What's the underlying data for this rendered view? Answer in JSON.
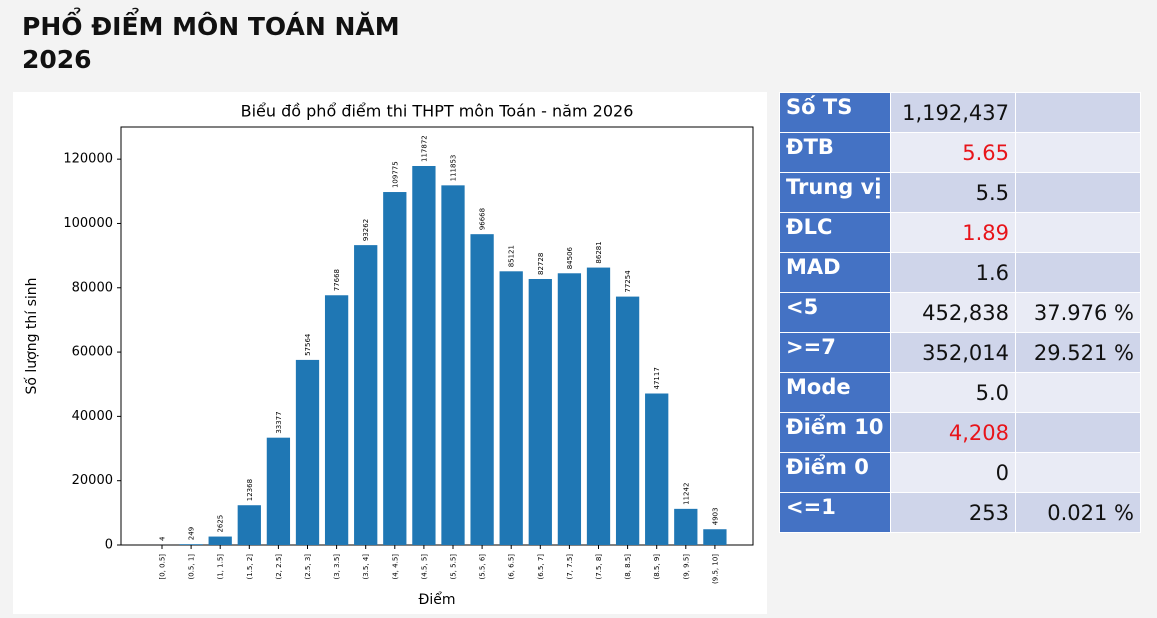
{
  "header": {
    "title": "PHỔ ĐIỂM MÔN TOÁN NĂM 2026"
  },
  "chart_data": {
    "type": "bar",
    "title": "Biểu đồ phổ điểm thi THPT môn Toán - năm 2026",
    "x_label": "Điểm",
    "y_label": "Số lượng thí sinh",
    "categories": [
      "[0, 0.5]",
      "(0.5, 1]",
      "(1, 1.5]",
      "(1.5, 2]",
      "(2, 2.5]",
      "(2.5, 3]",
      "(3, 3.5]",
      "(3.5, 4]",
      "(4, 4.5]",
      "(4.5, 5]",
      "(5, 5.5]",
      "(5.5, 6]",
      "(6, 6.5]",
      "(6.5, 7]",
      "(7, 7.5]",
      "(7.5, 8]",
      "(8, 8.5]",
      "(8.5, 9]",
      "(9, 9.5]",
      "(9.5, 10]"
    ],
    "values": [
      4,
      249,
      2625,
      12368,
      33377,
      57564,
      77668,
      93262,
      109775,
      117872,
      111853,
      96668,
      85121,
      82728,
      84506,
      86281,
      77254,
      47117,
      11242,
      4903
    ],
    "color": "#1f77b4",
    "ylim": [
      0,
      130000
    ],
    "yticks": [
      0,
      20000,
      40000,
      60000,
      80000,
      100000,
      120000
    ],
    "grid": false
  },
  "table": {
    "rows": [
      {
        "label": "Số TS",
        "value": "1,192,437"
      },
      {
        "label": "ĐTB",
        "value": "5.65",
        "value_color": "#e8141a"
      },
      {
        "label": "Trung vị",
        "value": "5.5"
      },
      {
        "label": "ĐLC",
        "value": "1.89",
        "value_color": "#e8141a"
      },
      {
        "label": "MAD",
        "value": "1.6"
      },
      {
        "label": "<5",
        "value": "452,838",
        "percent": "37.976 %"
      },
      {
        "label": ">=7",
        "value": "352,014",
        "percent": "29.521 %"
      },
      {
        "label": "Mode",
        "value": "5.0"
      },
      {
        "label": "Điểm 10",
        "value": "4,208",
        "value_color": "#e8141a"
      },
      {
        "label": "Điểm 0",
        "value": "0"
      },
      {
        "label": "<=1",
        "value": "253",
        "percent": "0.021 %"
      }
    ]
  }
}
